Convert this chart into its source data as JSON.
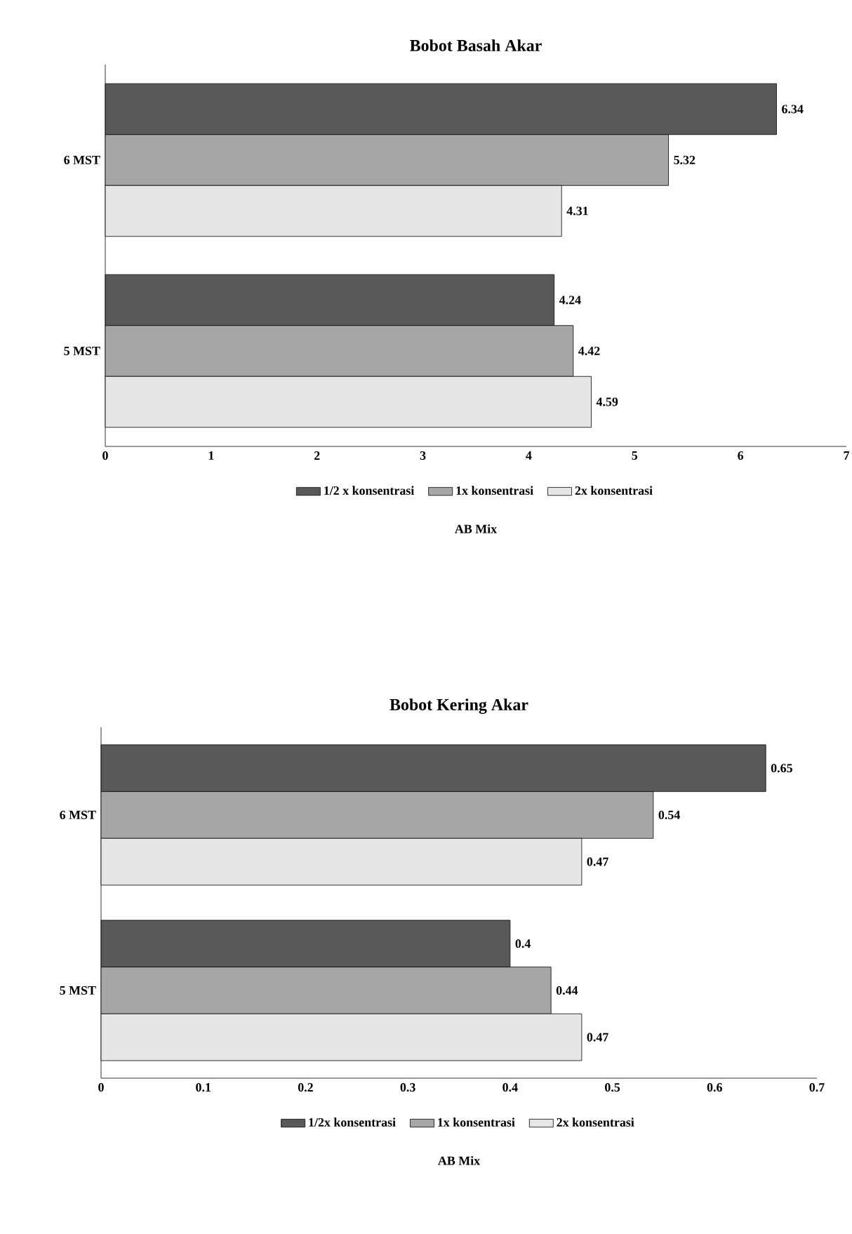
{
  "chart_data": [
    {
      "type": "bar",
      "orientation": "horizontal",
      "title": "Bobot Basah Akar",
      "xlabel": "AB Mix",
      "categories": [
        "6 MST",
        "5 MST"
      ],
      "series": [
        {
          "name": "1/2 x konsentrasi",
          "color": "#595959",
          "values": [
            6.34,
            4.24
          ]
        },
        {
          "name": "1x konsentrasi",
          "color": "#a6a6a6",
          "values": [
            5.32,
            4.42
          ]
        },
        {
          "name": "2x konsentrasi",
          "color": "#e6e6e6",
          "values": [
            4.31,
            4.59
          ]
        }
      ],
      "xlim": [
        0,
        7
      ],
      "xticks": [
        0,
        1,
        2,
        3,
        4,
        5,
        6,
        7
      ],
      "data_labels": true,
      "legend": "bottom"
    },
    {
      "type": "bar",
      "orientation": "horizontal",
      "title": "Bobot Kering Akar",
      "xlabel": "AB Mix",
      "categories": [
        "6 MST",
        "5 MST"
      ],
      "series": [
        {
          "name": "1/2x konsentrasi",
          "color": "#595959",
          "values": [
            0.65,
            0.4
          ]
        },
        {
          "name": "1x konsentrasi",
          "color": "#a6a6a6",
          "values": [
            0.54,
            0.44
          ]
        },
        {
          "name": "2x konsentrasi",
          "color": "#e6e6e6",
          "values": [
            0.47,
            0.47
          ]
        }
      ],
      "xlim": [
        0,
        0.7
      ],
      "xticks": [
        0,
        0.1,
        0.2,
        0.3,
        0.4,
        0.5,
        0.6,
        0.7
      ],
      "data_labels": true,
      "legend": "bottom"
    }
  ]
}
